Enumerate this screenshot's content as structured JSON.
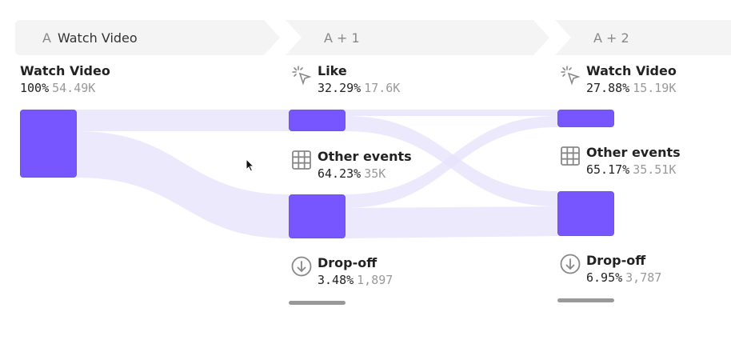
{
  "headers": [
    {
      "prefix": "A",
      "label": "Watch Video"
    },
    {
      "prefix": "",
      "label": "A + 1"
    },
    {
      "prefix": "",
      "label": "A + 2"
    }
  ],
  "colors": {
    "node": "#7856ff",
    "flow": "#e9e6fb",
    "dropoff_bar": "#999999"
  },
  "chart_data": {
    "type": "sankey",
    "columns": [
      {
        "step": "A",
        "nodes": [
          {
            "name": "Watch Video",
            "percent": "100%",
            "count": "54.49K",
            "icon": ""
          }
        ]
      },
      {
        "step": "A + 1",
        "nodes": [
          {
            "name": "Like",
            "percent": "32.29%",
            "count": "17.6K",
            "icon": "click-cursor-icon"
          },
          {
            "name": "Other events",
            "percent": "64.23%",
            "count": "35K",
            "icon": "grid-icon"
          },
          {
            "name": "Drop-off",
            "percent": "3.48%",
            "count": "1,897",
            "icon": "arrow-down-circle-icon"
          }
        ]
      },
      {
        "step": "A + 2",
        "nodes": [
          {
            "name": "Watch Video",
            "percent": "27.88%",
            "count": "15.19K",
            "icon": "click-cursor-icon"
          },
          {
            "name": "Other events",
            "percent": "65.17%",
            "count": "35.51K",
            "icon": "grid-icon"
          },
          {
            "name": "Drop-off",
            "percent": "6.95%",
            "count": "3,787",
            "icon": "arrow-down-circle-icon"
          }
        ]
      }
    ],
    "links": [
      {
        "from": "A:Watch Video",
        "to": "A+1:Like"
      },
      {
        "from": "A:Watch Video",
        "to": "A+1:Other events"
      },
      {
        "from": "A+1:Like",
        "to": "A+2:Watch Video"
      },
      {
        "from": "A+1:Like",
        "to": "A+2:Other events"
      },
      {
        "from": "A+1:Other events",
        "to": "A+2:Watch Video"
      },
      {
        "from": "A+1:Other events",
        "to": "A+2:Other events"
      }
    ]
  }
}
